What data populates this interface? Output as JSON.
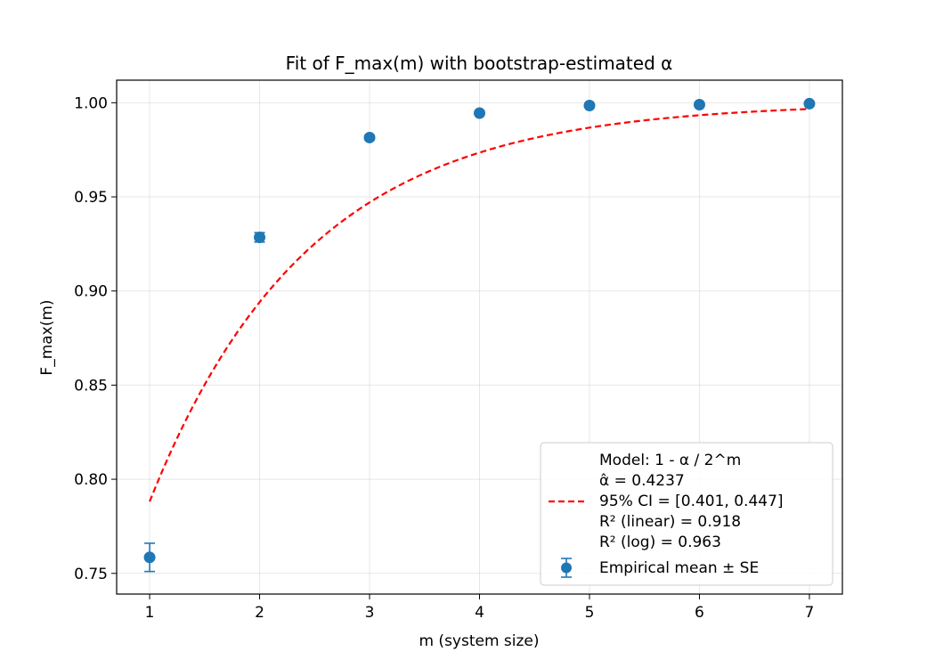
{
  "chart_data": {
    "type": "scatter",
    "title": "Fit of F_max(m) with bootstrap-estimated α",
    "xlabel": "m (system size)",
    "ylabel": "F_max(m)",
    "xlim": [
      0.7,
      7.3
    ],
    "ylim": [
      0.739,
      1.012
    ],
    "xticks": [
      "1",
      "2",
      "3",
      "4",
      "5",
      "6",
      "7"
    ],
    "yticks": [
      "0.75",
      "0.80",
      "0.85",
      "0.90",
      "0.95",
      "1.00"
    ],
    "grid": true,
    "legend_position": "lower-right",
    "series": [
      {
        "name": "Empirical mean ± SE",
        "kind": "errorbar",
        "color": "#1f77b4",
        "x": [
          1,
          2,
          3,
          4,
          5,
          6,
          7
        ],
        "y": [
          0.7585,
          0.9285,
          0.9815,
          0.9945,
          0.9985,
          0.999,
          0.9995
        ],
        "yerr": [
          0.0075,
          0.0025,
          0.001,
          0.0005,
          0.0003,
          0.0002,
          0.0001
        ]
      },
      {
        "name": "Model: 1 - α / 2^m",
        "kind": "line",
        "style": "dashed",
        "color": "#ff0000",
        "model": "1 - alpha / 2^m",
        "alpha": 0.4237,
        "x_range": [
          1,
          7
        ]
      }
    ],
    "legend": {
      "fit_lines": [
        "Model: 1 - α / 2^m",
        "α̂ = 0.4237",
        "95% CI = [0.401, 0.447]",
        "R² (linear) = 0.918",
        "R² (log) = 0.963"
      ],
      "empirical_label": "Empirical mean ± SE"
    }
  }
}
